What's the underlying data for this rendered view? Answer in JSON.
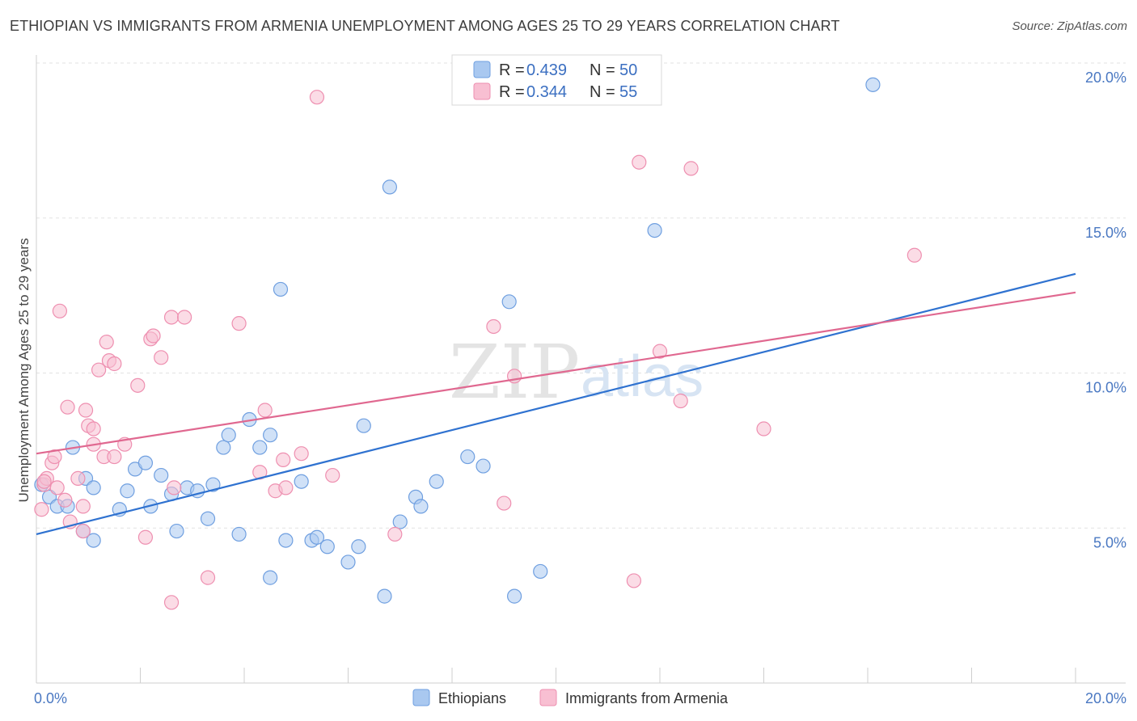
{
  "title": "ETHIOPIAN VS IMMIGRANTS FROM ARMENIA UNEMPLOYMENT AMONG AGES 25 TO 29 YEARS CORRELATION CHART",
  "source": "Source: ZipAtlas.com",
  "watermark": {
    "zip": "ZIP",
    "atlas": "atlas"
  },
  "chart_data": {
    "type": "scatter",
    "ylabel": "Unemployment Among Ages 25 to 29 years",
    "xlim": [
      0,
      20
    ],
    "ylim": [
      0,
      20
    ],
    "x_tick_labels": [
      "0.0%",
      "20.0%"
    ],
    "y_ticks": [
      {
        "value": 5,
        "label": "5.0%"
      },
      {
        "value": 10,
        "label": "10.0%"
      },
      {
        "value": 15,
        "label": "15.0%"
      },
      {
        "value": 20,
        "label": "20.0%"
      }
    ],
    "grid": true,
    "legend_position": "top-center",
    "series": [
      {
        "name": "Ethiopians",
        "color": "#a9c8f0",
        "edge": "#6f9fe0",
        "line_color": "#2f72d0",
        "R": "0.439",
        "N": "50",
        "trend": [
          [
            0,
            4.8
          ],
          [
            20,
            13.2
          ]
        ],
        "points": [
          [
            0.1,
            6.4
          ],
          [
            0.25,
            6.0
          ],
          [
            0.4,
            5.7
          ],
          [
            0.6,
            5.7
          ],
          [
            0.7,
            7.6
          ],
          [
            0.9,
            4.9
          ],
          [
            0.95,
            6.6
          ],
          [
            1.1,
            4.6
          ],
          [
            1.1,
            6.3
          ],
          [
            1.6,
            5.6
          ],
          [
            1.75,
            6.2
          ],
          [
            1.9,
            6.9
          ],
          [
            2.1,
            7.1
          ],
          [
            2.2,
            5.7
          ],
          [
            2.4,
            6.7
          ],
          [
            2.6,
            6.1
          ],
          [
            2.7,
            4.9
          ],
          [
            2.9,
            6.3
          ],
          [
            3.1,
            6.2
          ],
          [
            3.3,
            5.3
          ],
          [
            3.4,
            6.4
          ],
          [
            3.6,
            7.6
          ],
          [
            3.7,
            8.0
          ],
          [
            3.9,
            4.8
          ],
          [
            4.1,
            8.5
          ],
          [
            4.3,
            7.6
          ],
          [
            4.5,
            8.0
          ],
          [
            4.5,
            3.4
          ],
          [
            4.7,
            12.7
          ],
          [
            4.8,
            4.6
          ],
          [
            5.1,
            6.5
          ],
          [
            5.3,
            4.6
          ],
          [
            5.4,
            4.7
          ],
          [
            5.6,
            4.4
          ],
          [
            6.0,
            3.9
          ],
          [
            6.2,
            4.4
          ],
          [
            6.3,
            8.3
          ],
          [
            6.7,
            2.8
          ],
          [
            6.8,
            16.0
          ],
          [
            7.0,
            5.2
          ],
          [
            7.3,
            6.0
          ],
          [
            7.4,
            5.7
          ],
          [
            7.7,
            6.5
          ],
          [
            8.3,
            7.3
          ],
          [
            8.6,
            7.0
          ],
          [
            9.1,
            12.3
          ],
          [
            9.2,
            2.8
          ],
          [
            9.7,
            3.6
          ],
          [
            11.9,
            14.6
          ],
          [
            16.1,
            19.3
          ]
        ]
      },
      {
        "name": "Immigrants from Armenia",
        "color": "#f8bfd2",
        "edge": "#ee8fb0",
        "line_color": "#e06890",
        "R": "0.344",
        "N": "55",
        "trend": [
          [
            0,
            7.4
          ],
          [
            20,
            12.6
          ]
        ],
        "points": [
          [
            0.1,
            5.6
          ],
          [
            0.15,
            6.4
          ],
          [
            0.2,
            6.6
          ],
          [
            0.3,
            7.1
          ],
          [
            0.35,
            7.3
          ],
          [
            0.4,
            6.3
          ],
          [
            0.45,
            12.0
          ],
          [
            0.55,
            5.9
          ],
          [
            0.6,
            8.9
          ],
          [
            0.65,
            5.2
          ],
          [
            0.8,
            6.6
          ],
          [
            0.9,
            5.7
          ],
          [
            0.9,
            4.9
          ],
          [
            0.95,
            8.8
          ],
          [
            1.0,
            8.3
          ],
          [
            1.1,
            8.2
          ],
          [
            1.1,
            7.7
          ],
          [
            1.2,
            10.1
          ],
          [
            1.3,
            7.3
          ],
          [
            1.35,
            11.0
          ],
          [
            1.4,
            10.4
          ],
          [
            1.5,
            10.3
          ],
          [
            1.5,
            7.3
          ],
          [
            1.7,
            7.7
          ],
          [
            1.95,
            9.6
          ],
          [
            2.1,
            4.7
          ],
          [
            2.2,
            11.1
          ],
          [
            2.25,
            11.2
          ],
          [
            2.4,
            10.5
          ],
          [
            2.6,
            11.8
          ],
          [
            2.65,
            6.3
          ],
          [
            2.6,
            2.6
          ],
          [
            2.85,
            11.8
          ],
          [
            3.3,
            3.4
          ],
          [
            3.9,
            11.6
          ],
          [
            4.3,
            6.8
          ],
          [
            4.4,
            8.8
          ],
          [
            4.6,
            6.2
          ],
          [
            4.75,
            7.2
          ],
          [
            4.8,
            6.3
          ],
          [
            5.1,
            7.4
          ],
          [
            5.4,
            18.9
          ],
          [
            5.7,
            6.7
          ],
          [
            6.9,
            4.8
          ],
          [
            8.8,
            11.5
          ],
          [
            9.0,
            5.8
          ],
          [
            9.2,
            9.9
          ],
          [
            11.5,
            3.3
          ],
          [
            11.6,
            16.8
          ],
          [
            12.0,
            10.7
          ],
          [
            12.4,
            9.1
          ],
          [
            12.6,
            16.6
          ],
          [
            14.0,
            8.2
          ],
          [
            16.9,
            13.8
          ],
          [
            0.15,
            6.5
          ]
        ]
      }
    ]
  },
  "legend": {
    "r_label": "R = ",
    "n_label": "N = "
  }
}
